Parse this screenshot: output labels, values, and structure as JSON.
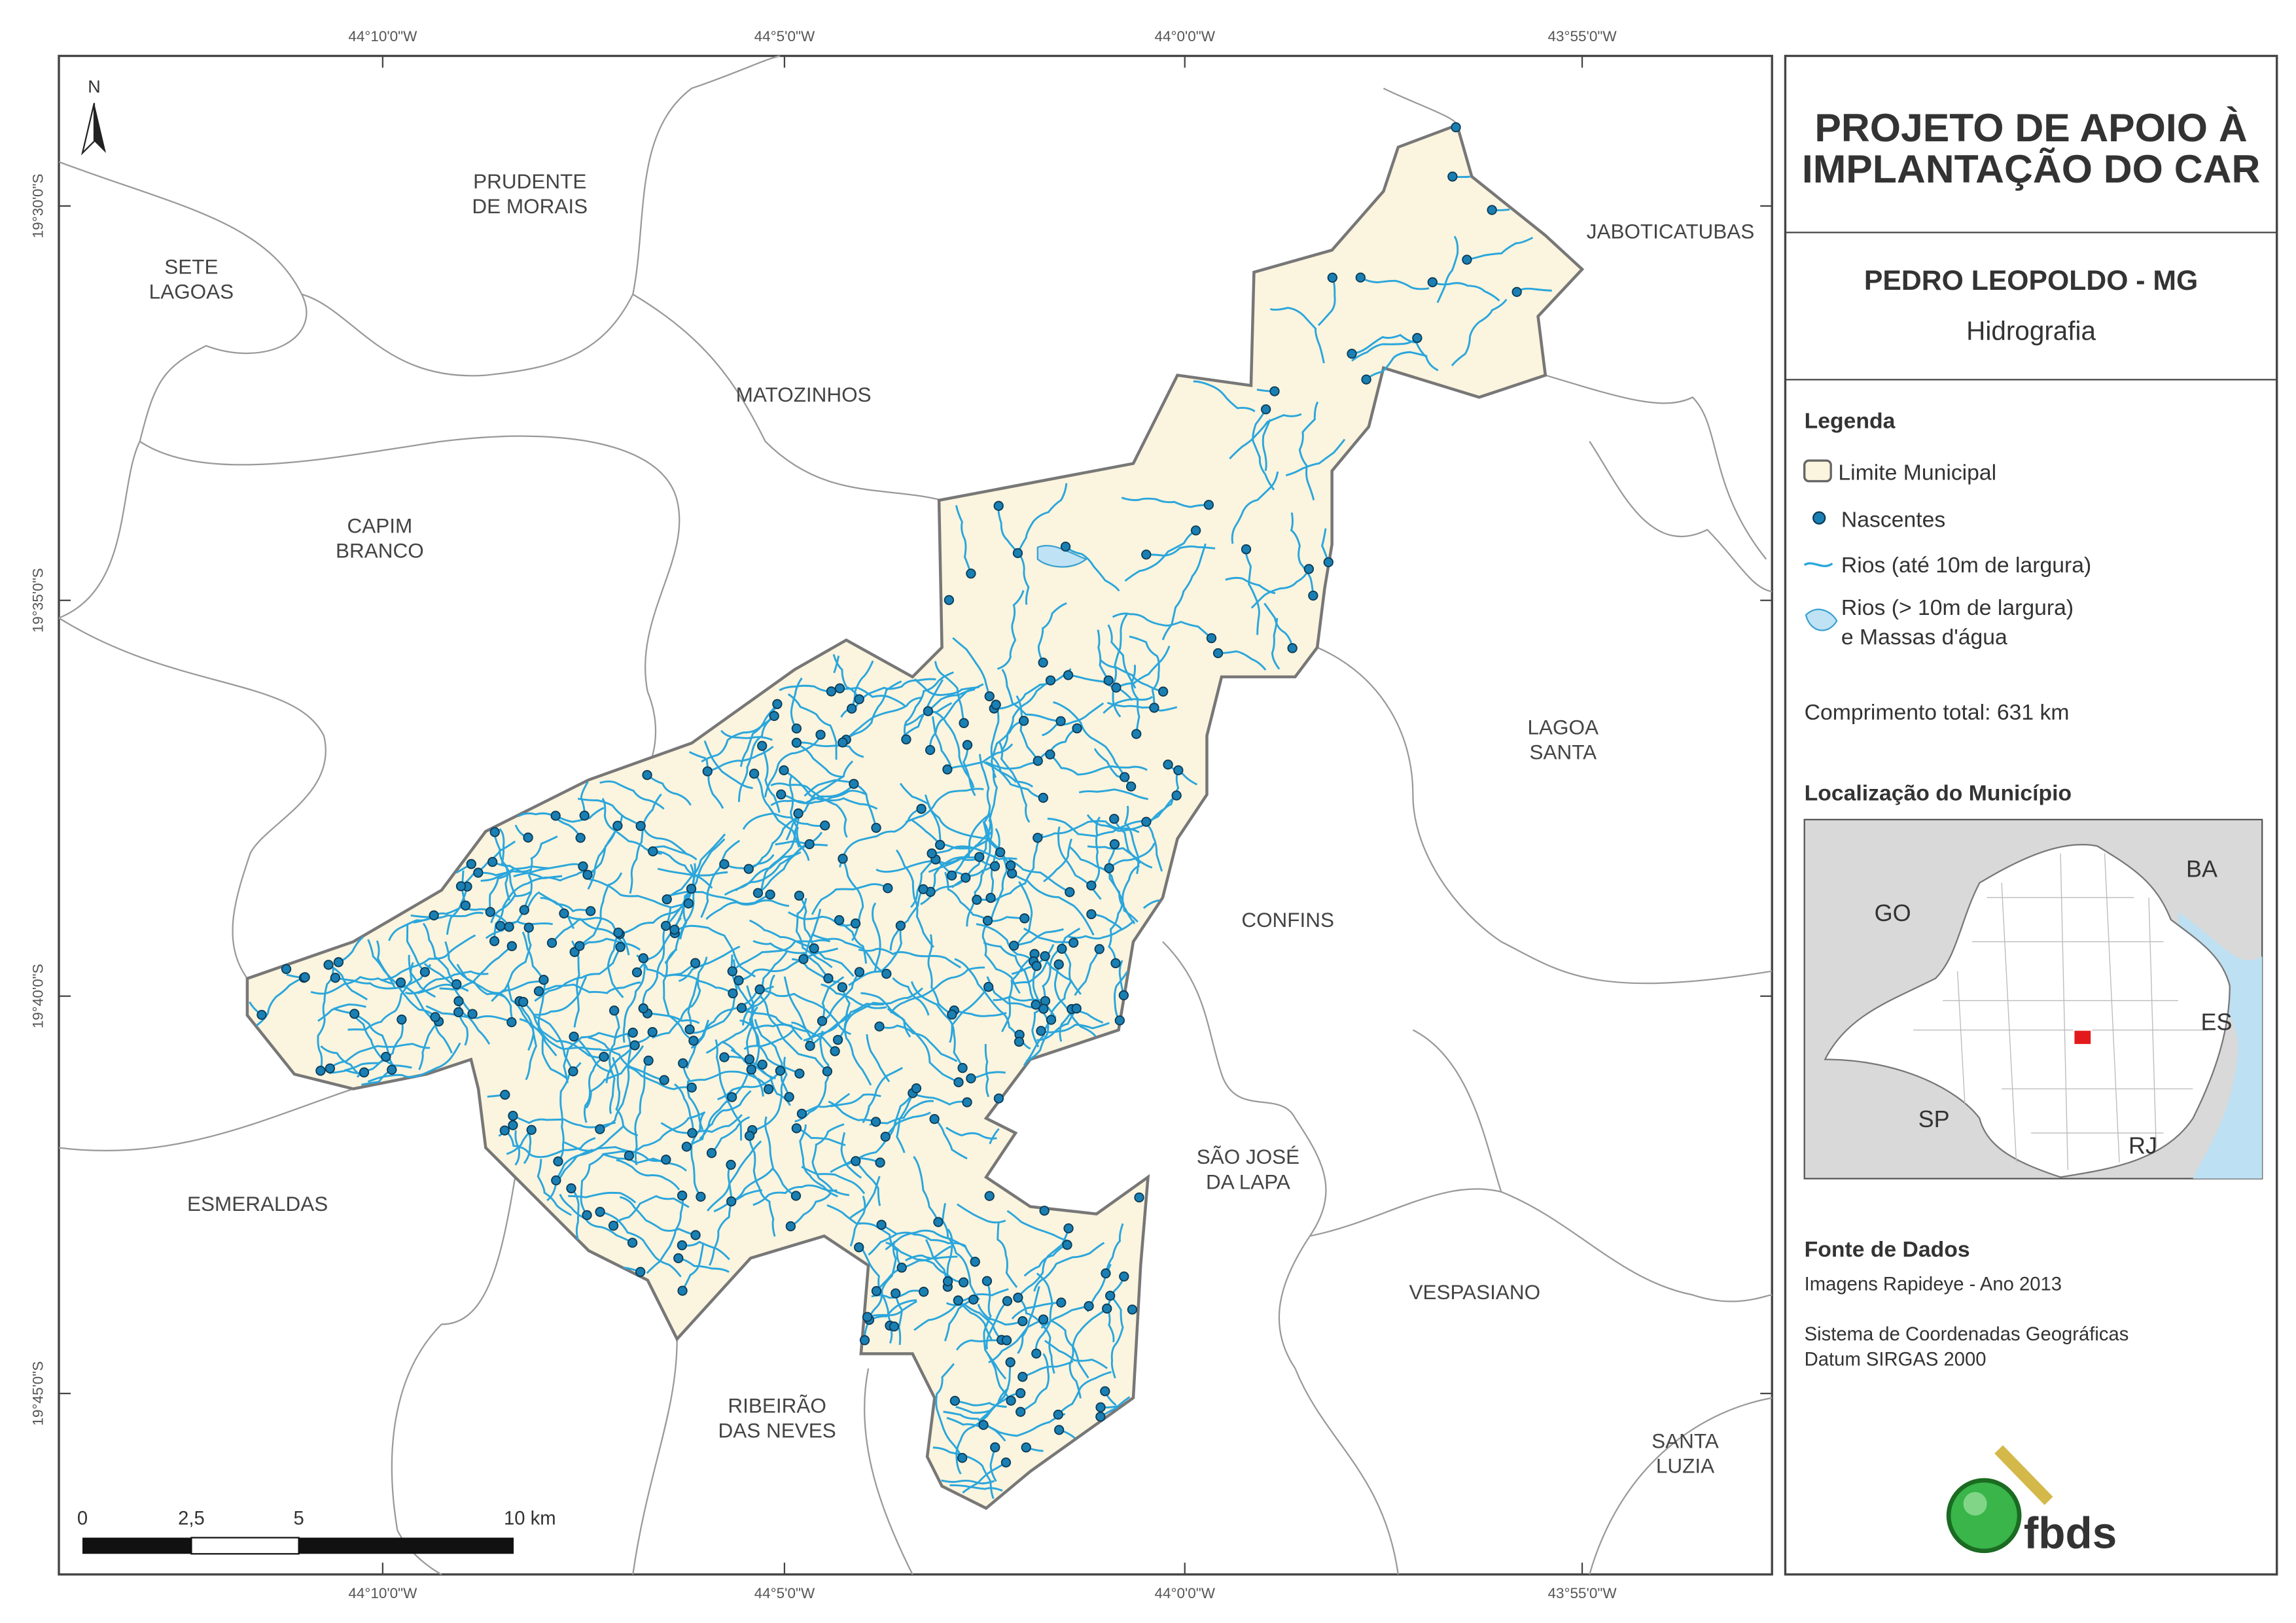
{
  "map": {
    "top_ticks": [
      "44°10'0\"W",
      "44°5'0\"W",
      "44°0'0\"W",
      "43°55'0\"W"
    ],
    "bottom_ticks": [
      "44°10'0\"W",
      "44°5'0\"W",
      "44°0'0\"W",
      "43°55'0\"W"
    ],
    "left_ticks": [
      "19°30'0\"S",
      "19°35'0\"S",
      "19°40'0\"S",
      "19°45'0\"S"
    ],
    "north": "N",
    "places": [
      [
        "SETE",
        "LAGOAS"
      ],
      [
        "PRUDENTE",
        "DE MORAIS"
      ],
      [
        "MATOZINHOS"
      ],
      [
        "CAPIM",
        "BRANCO"
      ],
      [
        "JABOTICATUBAS"
      ],
      [
        "LAGOA",
        "SANTA"
      ],
      [
        "CONFINS"
      ],
      [
        "SÃO JOSÉ",
        "DA LAPA"
      ],
      [
        "ESMERALDAS"
      ],
      [
        "VESPASIANO"
      ],
      [
        "RIBEIRÃO",
        "DAS NEVES"
      ],
      [
        "SANTA",
        "LUZIA"
      ]
    ],
    "scale": [
      "0",
      "2,5",
      "5",
      "10 km"
    ]
  },
  "panel": {
    "title": [
      "PROJETO DE APOIO À",
      "IMPLANTAÇÃO DO CAR"
    ],
    "municipality": "PEDRO LEOPOLDO - MG",
    "theme": "Hidrografia",
    "legend_title": "Legenda",
    "legend_items": [
      [
        "Limite Municipal"
      ],
      [
        "Nascentes"
      ],
      [
        "Rios (até 10m de largura)"
      ],
      [
        "Rios (> 10m de largura)",
        "e Massas d'água"
      ]
    ],
    "length": "Comprimento total: 631 km",
    "location_title": "Localização do Município",
    "location_labels": [
      "GO",
      "BA",
      "ES",
      "SP",
      "RJ"
    ],
    "source_title": "Fonte de Dados",
    "source_lines": [
      "Imagens Rapideye - Ano 2013",
      "Sistema de Coordenadas Geográficas",
      "Datum SIRGAS 2000"
    ],
    "logo": "fbds"
  }
}
